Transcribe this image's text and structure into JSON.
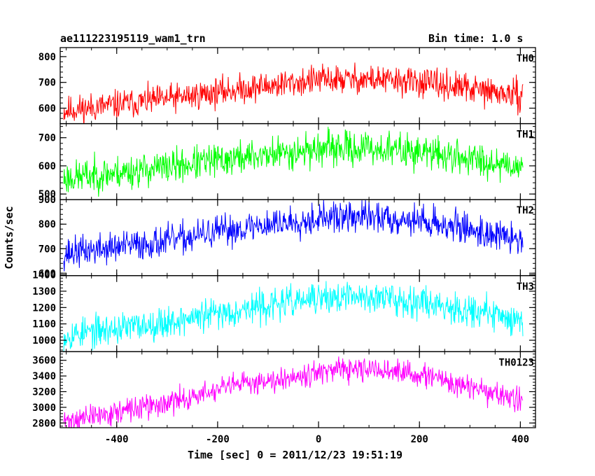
{
  "header": {
    "left_title": "ae111223195119_wam1_trn",
    "right_title": "Bin time: 1.0 s"
  },
  "xlabel": "Time [sec] 0 = 2011/12/23 19:51:19",
  "ylabel": "Counts/sec",
  "x_axis": {
    "range": [
      -512,
      430
    ],
    "ticks": [
      -400,
      -200,
      0,
      200,
      400
    ]
  },
  "chart_data": [
    {
      "type": "line",
      "panel": "TH0",
      "label": "TH0",
      "color": "#ff0000",
      "ylim": [
        540,
        835
      ],
      "yticks": [
        600,
        700,
        800
      ],
      "x_range": [
        -505,
        405
      ],
      "trend": [
        [
          -505,
          590
        ],
        [
          -300,
          635
        ],
        [
          -150,
          675
        ],
        [
          0,
          710
        ],
        [
          100,
          712
        ],
        [
          200,
          700
        ],
        [
          300,
          675
        ],
        [
          405,
          645
        ]
      ],
      "noise": 28,
      "seed": 11
    },
    {
      "type": "line",
      "panel": "TH1",
      "label": "TH1",
      "color": "#00ff00",
      "ylim": [
        480,
        750
      ],
      "yticks": [
        500,
        600,
        700
      ],
      "x_range": [
        -505,
        405
      ],
      "trend": [
        [
          -505,
          555
        ],
        [
          -300,
          595
        ],
        [
          -150,
          630
        ],
        [
          0,
          660
        ],
        [
          100,
          662
        ],
        [
          200,
          650
        ],
        [
          300,
          625
        ],
        [
          405,
          600
        ]
      ],
      "noise": 30,
      "seed": 23
    },
    {
      "type": "line",
      "panel": "TH2",
      "label": "TH2",
      "color": "#0000ff",
      "ylim": [
        590,
        900
      ],
      "yticks": [
        600,
        700,
        800,
        900
      ],
      "x_range": [
        -505,
        405
      ],
      "trend": [
        [
          -505,
          680
        ],
        [
          -300,
          730
        ],
        [
          -150,
          785
        ],
        [
          0,
          825
        ],
        [
          100,
          830
        ],
        [
          200,
          815
        ],
        [
          300,
          780
        ],
        [
          405,
          730
        ]
      ],
      "noise": 32,
      "seed": 37
    },
    {
      "type": "line",
      "panel": "TH3",
      "label": "TH3",
      "color": "#00ffff",
      "ylim": [
        930,
        1395
      ],
      "yticks": [
        1000,
        1100,
        1200,
        1300,
        1400
      ],
      "x_range": [
        -505,
        405
      ],
      "trend": [
        [
          -505,
          1030
        ],
        [
          -300,
          1110
        ],
        [
          -150,
          1190
        ],
        [
          0,
          1255
        ],
        [
          100,
          1265
        ],
        [
          200,
          1240
        ],
        [
          300,
          1185
        ],
        [
          405,
          1120
        ]
      ],
      "noise": 48,
      "seed": 53
    },
    {
      "type": "line",
      "panel": "TH0123",
      "label": "TH0123",
      "color": "#ff00ff",
      "ylim": [
        2740,
        3710
      ],
      "yticks": [
        2800,
        3000,
        3200,
        3400,
        3600
      ],
      "x_range": [
        -505,
        405
      ],
      "trend": [
        [
          -505,
          2820
        ],
        [
          -300,
          3050
        ],
        [
          -150,
          3300
        ],
        [
          0,
          3450
        ],
        [
          100,
          3480
        ],
        [
          200,
          3420
        ],
        [
          300,
          3250
        ],
        [
          405,
          3080
        ]
      ],
      "noise": 75,
      "seed": 71
    }
  ]
}
